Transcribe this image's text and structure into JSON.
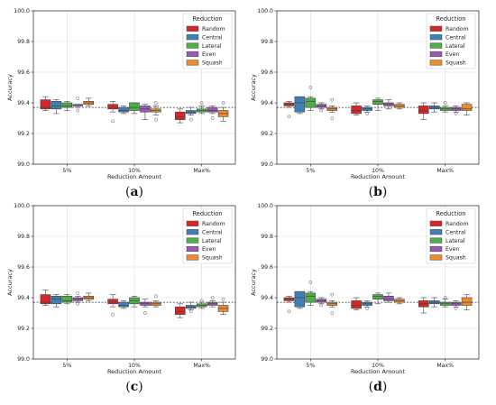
{
  "figure": {
    "legend_title": "Reduction",
    "groups": [
      "Random",
      "Central",
      "Lateral",
      "Even",
      "Squash"
    ],
    "colors": [
      "#d62728",
      "#3f7fb8",
      "#4daf4a",
      "#9b59b6",
      "#f0892a"
    ]
  },
  "chart_data": [
    {
      "panel_label": "a",
      "type": "box",
      "categories": [
        "5%",
        "10%",
        "Max%"
      ],
      "xlabel": "Reduction Amount",
      "ylabel": "Accuracy",
      "ylim": [
        99.0,
        100.0
      ],
      "yticks": [
        "99.0",
        "99.2",
        "99.4",
        "99.6",
        "99.8",
        "100.0"
      ],
      "reference_line": 99.37,
      "legend_position": "top-right",
      "grid": true,
      "series": [
        {
          "name": "Random",
          "boxes": [
            {
              "whislo": 99.35,
              "q1": 99.36,
              "med": 99.37,
              "q3": 99.42,
              "whishi": 99.44,
              "fliers": []
            },
            {
              "whislo": 99.34,
              "q1": 99.36,
              "med": 99.37,
              "q3": 99.39,
              "whishi": 99.41,
              "fliers": [
                99.28
              ]
            },
            {
              "whislo": 99.27,
              "q1": 99.29,
              "med": 99.31,
              "q3": 99.34,
              "whishi": 99.36,
              "fliers": []
            }
          ]
        },
        {
          "name": "Central",
          "boxes": [
            {
              "whislo": 99.33,
              "q1": 99.36,
              "med": 99.38,
              "q3": 99.41,
              "whishi": 99.42,
              "fliers": []
            },
            {
              "whislo": 99.33,
              "q1": 99.34,
              "med": 99.35,
              "q3": 99.37,
              "whishi": 99.38,
              "fliers": []
            },
            {
              "whislo": 99.32,
              "q1": 99.33,
              "med": 99.34,
              "q3": 99.35,
              "whishi": 99.37,
              "fliers": [
                99.29
              ]
            }
          ]
        },
        {
          "name": "Lateral",
          "boxes": [
            {
              "whislo": 99.35,
              "q1": 99.37,
              "med": 99.38,
              "q3": 99.4,
              "whishi": 99.41,
              "fliers": []
            },
            {
              "whislo": 99.33,
              "q1": 99.35,
              "med": 99.37,
              "q3": 99.4,
              "whishi": 99.4,
              "fliers": []
            },
            {
              "whislo": 99.33,
              "q1": 99.34,
              "med": 99.35,
              "q3": 99.36,
              "whishi": 99.38,
              "fliers": [
                99.4
              ]
            }
          ]
        },
        {
          "name": "Even",
          "boxes": [
            {
              "whislo": 99.37,
              "q1": 99.38,
              "med": 99.38,
              "q3": 99.39,
              "whishi": 99.39,
              "fliers": [
                99.43,
                99.35
              ]
            },
            {
              "whislo": 99.29,
              "q1": 99.34,
              "med": 99.36,
              "q3": 99.38,
              "whishi": 99.39,
              "fliers": []
            },
            {
              "whislo": 99.33,
              "q1": 99.34,
              "med": 99.35,
              "q3": 99.37,
              "whishi": 99.38,
              "fliers": [
                99.3
              ]
            }
          ]
        },
        {
          "name": "Squash",
          "boxes": [
            {
              "whislo": 99.38,
              "q1": 99.39,
              "med": 99.4,
              "q3": 99.41,
              "whishi": 99.43,
              "fliers": []
            },
            {
              "whislo": 99.32,
              "q1": 99.34,
              "med": 99.35,
              "q3": 99.36,
              "whishi": 99.38,
              "fliers": [
                99.4,
                99.29
              ]
            },
            {
              "whislo": 99.28,
              "q1": 99.31,
              "med": 99.33,
              "q3": 99.35,
              "whishi": 99.37,
              "fliers": [
                99.4
              ]
            }
          ]
        }
      ]
    },
    {
      "panel_label": "b",
      "type": "box",
      "categories": [
        "5%",
        "10%",
        "Max%"
      ],
      "xlabel": "Reduction Amount",
      "ylabel": "Accuracy",
      "ylim": [
        99.0,
        100.0
      ],
      "yticks": [
        "99.0",
        "99.2",
        "99.4",
        "99.6",
        "99.8",
        "100.0"
      ],
      "reference_line": 99.37,
      "legend_position": "top-right",
      "grid": true,
      "series": [
        {
          "name": "Random",
          "boxes": [
            {
              "whislo": 99.37,
              "q1": 99.38,
              "med": 99.39,
              "q3": 99.4,
              "whishi": 99.41,
              "fliers": [
                99.31
              ]
            },
            {
              "whislo": 99.32,
              "q1": 99.33,
              "med": 99.35,
              "q3": 99.38,
              "whishi": 99.4,
              "fliers": []
            },
            {
              "whislo": 99.29,
              "q1": 99.33,
              "med": 99.35,
              "q3": 99.38,
              "whishi": 99.4,
              "fliers": []
            }
          ]
        },
        {
          "name": "Central",
          "boxes": [
            {
              "whislo": 99.33,
              "q1": 99.34,
              "med": 99.4,
              "q3": 99.44,
              "whishi": 99.44,
              "fliers": []
            },
            {
              "whislo": 99.34,
              "q1": 99.35,
              "med": 99.36,
              "q3": 99.37,
              "whishi": 99.38,
              "fliers": [
                99.33
              ]
            },
            {
              "whislo": 99.34,
              "q1": 99.36,
              "med": 99.37,
              "q3": 99.38,
              "whishi": 99.4,
              "fliers": []
            }
          ]
        },
        {
          "name": "Lateral",
          "boxes": [
            {
              "whislo": 99.35,
              "q1": 99.37,
              "med": 99.41,
              "q3": 99.43,
              "whishi": 99.44,
              "fliers": [
                99.5
              ]
            },
            {
              "whislo": 99.35,
              "q1": 99.39,
              "med": 99.41,
              "q3": 99.42,
              "whishi": 99.43,
              "fliers": []
            },
            {
              "whislo": 99.34,
              "q1": 99.35,
              "med": 99.36,
              "q3": 99.37,
              "whishi": 99.38,
              "fliers": [
                99.4
              ]
            }
          ]
        },
        {
          "name": "Even",
          "boxes": [
            {
              "whislo": 99.36,
              "q1": 99.37,
              "med": 99.38,
              "q3": 99.39,
              "whishi": 99.4,
              "fliers": [
                99.35
              ]
            },
            {
              "whislo": 99.36,
              "q1": 99.38,
              "med": 99.39,
              "q3": 99.4,
              "whishi": 99.42,
              "fliers": []
            },
            {
              "whislo": 99.34,
              "q1": 99.35,
              "med": 99.36,
              "q3": 99.37,
              "whishi": 99.38,
              "fliers": [
                99.33
              ]
            }
          ]
        },
        {
          "name": "Squash",
          "boxes": [
            {
              "whislo": 99.34,
              "q1": 99.35,
              "med": 99.36,
              "q3": 99.37,
              "whishi": 99.38,
              "fliers": [
                99.42,
                99.3
              ]
            },
            {
              "whislo": 99.36,
              "q1": 99.37,
              "med": 99.38,
              "q3": 99.39,
              "whishi": 99.4,
              "fliers": []
            },
            {
              "whislo": 99.32,
              "q1": 99.35,
              "med": 99.36,
              "q3": 99.39,
              "whishi": 99.4,
              "fliers": []
            }
          ]
        }
      ]
    },
    {
      "panel_label": "c",
      "type": "box",
      "categories": [
        "5%",
        "10%",
        "Max%"
      ],
      "xlabel": "Reduction Amount",
      "ylabel": "Accuracy",
      "ylim": [
        99.0,
        100.0
      ],
      "yticks": [
        "99.0",
        "99.2",
        "99.4",
        "99.6",
        "99.8",
        "100.0"
      ],
      "reference_line": 99.37,
      "legend_position": "top-right",
      "grid": true,
      "series": [
        {
          "name": "Random",
          "boxes": [
            {
              "whislo": 99.35,
              "q1": 99.36,
              "med": 99.37,
              "q3": 99.42,
              "whishi": 99.45,
              "fliers": []
            },
            {
              "whislo": 99.34,
              "q1": 99.36,
              "med": 99.37,
              "q3": 99.39,
              "whishi": 99.42,
              "fliers": [
                99.29
              ]
            },
            {
              "whislo": 99.27,
              "q1": 99.29,
              "med": 99.31,
              "q3": 99.34,
              "whishi": 99.36,
              "fliers": []
            }
          ]
        },
        {
          "name": "Central",
          "boxes": [
            {
              "whislo": 99.34,
              "q1": 99.36,
              "med": 99.39,
              "q3": 99.41,
              "whishi": 99.42,
              "fliers": []
            },
            {
              "whislo": 99.33,
              "q1": 99.34,
              "med": 99.35,
              "q3": 99.37,
              "whishi": 99.38,
              "fliers": []
            },
            {
              "whislo": 99.32,
              "q1": 99.33,
              "med": 99.34,
              "q3": 99.35,
              "whishi": 99.37,
              "fliers": [
                99.31
              ]
            }
          ]
        },
        {
          "name": "Lateral",
          "boxes": [
            {
              "whislo": 99.36,
              "q1": 99.37,
              "med": 99.38,
              "q3": 99.41,
              "whishi": 99.42,
              "fliers": []
            },
            {
              "whislo": 99.34,
              "q1": 99.36,
              "med": 99.38,
              "q3": 99.4,
              "whishi": 99.41,
              "fliers": []
            },
            {
              "whislo": 99.33,
              "q1": 99.34,
              "med": 99.35,
              "q3": 99.36,
              "whishi": 99.37,
              "fliers": [
                99.38
              ]
            }
          ]
        },
        {
          "name": "Even",
          "boxes": [
            {
              "whislo": 99.37,
              "q1": 99.38,
              "med": 99.39,
              "q3": 99.4,
              "whishi": 99.41,
              "fliers": [
                99.43,
                99.36
              ]
            },
            {
              "whislo": 99.34,
              "q1": 99.35,
              "med": 99.36,
              "q3": 99.37,
              "whishi": 99.39,
              "fliers": [
                99.3
              ]
            },
            {
              "whislo": 99.34,
              "q1": 99.35,
              "med": 99.36,
              "q3": 99.37,
              "whishi": 99.38,
              "fliers": [
                99.4
              ]
            }
          ]
        },
        {
          "name": "Squash",
          "boxes": [
            {
              "whislo": 99.38,
              "q1": 99.39,
              "med": 99.4,
              "q3": 99.41,
              "whishi": 99.43,
              "fliers": []
            },
            {
              "whislo": 99.34,
              "q1": 99.35,
              "med": 99.36,
              "q3": 99.37,
              "whishi": 99.38,
              "fliers": [
                99.41
              ]
            },
            {
              "whislo": 99.29,
              "q1": 99.31,
              "med": 99.33,
              "q3": 99.35,
              "whishi": 99.37,
              "fliers": [
                99.39
              ]
            }
          ]
        }
      ]
    },
    {
      "panel_label": "d",
      "type": "box",
      "categories": [
        "5%",
        "10%",
        "Max%"
      ],
      "xlabel": "Reduction Amount",
      "ylabel": "Accuracy",
      "ylim": [
        99.0,
        100.0
      ],
      "yticks": [
        "99.0",
        "99.2",
        "99.4",
        "99.6",
        "99.8",
        "100.0"
      ],
      "reference_line": 99.37,
      "legend_position": "top-right",
      "grid": true,
      "series": [
        {
          "name": "Random",
          "boxes": [
            {
              "whislo": 99.37,
              "q1": 99.38,
              "med": 99.39,
              "q3": 99.4,
              "whishi": 99.41,
              "fliers": [
                99.31
              ]
            },
            {
              "whislo": 99.32,
              "q1": 99.33,
              "med": 99.35,
              "q3": 99.38,
              "whishi": 99.4,
              "fliers": []
            },
            {
              "whislo": 99.3,
              "q1": 99.34,
              "med": 99.36,
              "q3": 99.38,
              "whishi": 99.4,
              "fliers": []
            }
          ]
        },
        {
          "name": "Central",
          "boxes": [
            {
              "whislo": 99.33,
              "q1": 99.34,
              "med": 99.4,
              "q3": 99.44,
              "whishi": 99.44,
              "fliers": []
            },
            {
              "whislo": 99.34,
              "q1": 99.35,
              "med": 99.36,
              "q3": 99.37,
              "whishi": 99.38,
              "fliers": [
                99.33
              ]
            },
            {
              "whislo": 99.34,
              "q1": 99.36,
              "med": 99.37,
              "q3": 99.38,
              "whishi": 99.4,
              "fliers": []
            }
          ]
        },
        {
          "name": "Lateral",
          "boxes": [
            {
              "whislo": 99.35,
              "q1": 99.37,
              "med": 99.41,
              "q3": 99.43,
              "whishi": 99.44,
              "fliers": [
                99.5
              ]
            },
            {
              "whislo": 99.36,
              "q1": 99.39,
              "med": 99.41,
              "q3": 99.42,
              "whishi": 99.43,
              "fliers": []
            },
            {
              "whislo": 99.34,
              "q1": 99.35,
              "med": 99.36,
              "q3": 99.37,
              "whishi": 99.39,
              "fliers": [
                99.4
              ]
            }
          ]
        },
        {
          "name": "Even",
          "boxes": [
            {
              "whislo": 99.36,
              "q1": 99.37,
              "med": 99.38,
              "q3": 99.39,
              "whishi": 99.4,
              "fliers": [
                99.35
              ]
            },
            {
              "whislo": 99.37,
              "q1": 99.38,
              "med": 99.39,
              "q3": 99.41,
              "whishi": 99.43,
              "fliers": []
            },
            {
              "whislo": 99.34,
              "q1": 99.35,
              "med": 99.36,
              "q3": 99.37,
              "whishi": 99.38,
              "fliers": [
                99.33
              ]
            }
          ]
        },
        {
          "name": "Squash",
          "boxes": [
            {
              "whislo": 99.34,
              "q1": 99.35,
              "med": 99.36,
              "q3": 99.37,
              "whishi": 99.38,
              "fliers": [
                99.42,
                99.3
              ]
            },
            {
              "whislo": 99.36,
              "q1": 99.37,
              "med": 99.38,
              "q3": 99.39,
              "whishi": 99.4,
              "fliers": []
            },
            {
              "whislo": 99.32,
              "q1": 99.35,
              "med": 99.37,
              "q3": 99.4,
              "whishi": 99.42,
              "fliers": []
            }
          ]
        }
      ]
    }
  ]
}
